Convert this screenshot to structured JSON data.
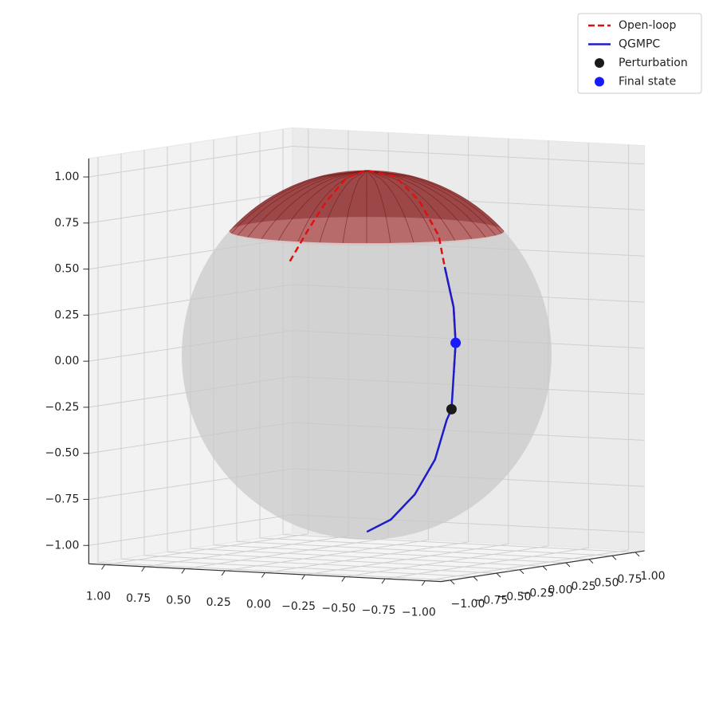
{
  "chart_data": {
    "type": "line3d",
    "legend": "upper right",
    "xlim": [
      -1.1,
      1.1
    ],
    "ylim": [
      -1.1,
      1.1
    ],
    "zlim": [
      -1.1,
      1.1
    ],
    "xticks": [
      {
        "value": 1,
        "label": "1.00"
      },
      {
        "value": 0.75,
        "label": "0.75"
      },
      {
        "value": 0.5,
        "label": "0.50"
      },
      {
        "value": 0.25,
        "label": "0.25"
      },
      {
        "value": 0,
        "label": "0.00"
      },
      {
        "value": -0.25,
        "label": "−0.25"
      },
      {
        "value": -0.5,
        "label": "−0.50"
      },
      {
        "value": -0.75,
        "label": "−0.75"
      },
      {
        "value": -1,
        "label": "−1.00"
      }
    ],
    "yticks": [
      {
        "value": -1,
        "label": "−1.00"
      },
      {
        "value": -0.75,
        "label": "−0.75"
      },
      {
        "value": -0.5,
        "label": "−0.50"
      },
      {
        "value": -0.25,
        "label": "−0.25"
      },
      {
        "value": 0,
        "label": "0.00"
      },
      {
        "value": 0.25,
        "label": "0.25"
      },
      {
        "value": 0.5,
        "label": "0.50"
      },
      {
        "value": 0.75,
        "label": "0.75"
      },
      {
        "value": 1,
        "label": "1.00"
      }
    ],
    "zticks": [
      {
        "value": -1,
        "label": "−1.00"
      },
      {
        "value": -0.75,
        "label": "−0.75"
      },
      {
        "value": -0.5,
        "label": "−0.50"
      },
      {
        "value": -0.25,
        "label": "−0.25"
      },
      {
        "value": 0,
        "label": "0.00"
      },
      {
        "value": 0.25,
        "label": "0.25"
      },
      {
        "value": 0.5,
        "label": "0.50"
      },
      {
        "value": 0.75,
        "label": "0.75"
      },
      {
        "value": 1,
        "label": "1.00"
      }
    ],
    "grid": true,
    "sphere": {
      "color": "#c8c8c8"
    },
    "cap": {
      "z_min": 0.67,
      "color": "#8b1a1a"
    },
    "series": [
      {
        "name": "Open-loop",
        "type": "line",
        "style": "dashed",
        "color": "#e01010",
        "x": [
          0.0,
          -0.03,
          -0.03,
          0.0,
          0.0,
          -0.2,
          -0.45,
          -0.64,
          -0.73,
          -0.82,
          -0.85,
          -0.85
        ],
        "y": [
          -0.83,
          -0.7,
          -0.49,
          -0.21,
          0.0,
          -0.04,
          -0.21,
          -0.33,
          -0.42,
          -0.48,
          -0.51,
          -0.53
        ],
        "z": [
          0.57,
          0.72,
          0.87,
          0.98,
          1.0,
          0.98,
          0.87,
          0.7,
          0.54,
          0.33,
          0.14,
          -0.02
        ]
      },
      {
        "name": "QGMPC",
        "type": "line",
        "style": "solid",
        "color": "#1c1ccc",
        "x": [
          -0.18,
          -0.37,
          -0.56,
          -0.71,
          -0.8,
          -0.83,
          -0.85,
          -0.85,
          -0.82,
          -0.73
        ],
        "y": [
          -0.31,
          -0.38,
          -0.45,
          -0.49,
          -0.52,
          -0.52,
          -0.53,
          -0.51,
          -0.48,
          -0.42
        ],
        "z": [
          -0.93,
          -0.85,
          -0.7,
          -0.5,
          -0.28,
          -0.22,
          -0.02,
          0.14,
          0.33,
          0.54
        ]
      },
      {
        "name": "Perturbation",
        "type": "scatter",
        "color": "#1a1a1a",
        "x": [
          -0.83
        ],
        "y": [
          -0.52
        ],
        "z": [
          -0.22
        ]
      },
      {
        "name": "Final state",
        "type": "scatter",
        "color": "#1a1aff",
        "x": [
          -0.85
        ],
        "y": [
          -0.51
        ],
        "z": [
          0.14
        ]
      }
    ]
  }
}
